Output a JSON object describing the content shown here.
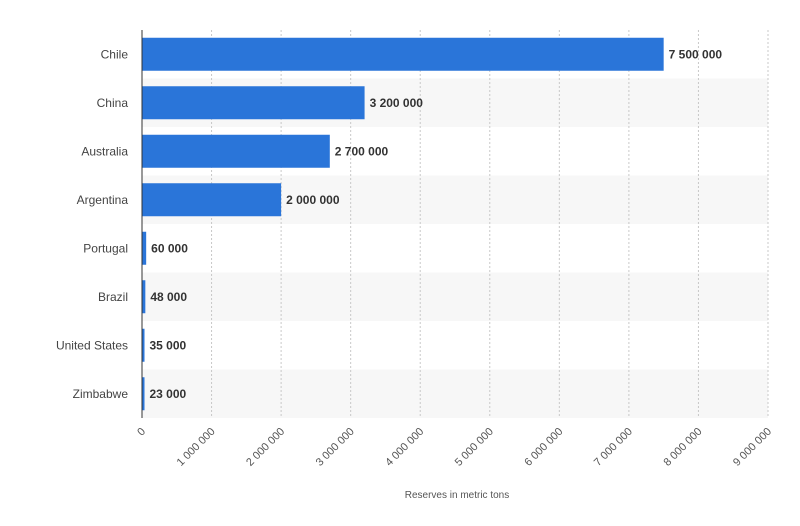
{
  "chart_data": {
    "type": "bar",
    "orientation": "horizontal",
    "categories": [
      "Chile",
      "China",
      "Australia",
      "Argentina",
      "Portugal",
      "Brazil",
      "United States",
      "Zimbabwe"
    ],
    "values": [
      7500000,
      3200000,
      2700000,
      2000000,
      60000,
      48000,
      35000,
      23000
    ],
    "value_labels": [
      "7 500 000",
      "3 200 000",
      "2 700 000",
      "2 000 000",
      "60 000",
      "48 000",
      "35 000",
      "23 000"
    ],
    "xticks": [
      0,
      1000000,
      2000000,
      3000000,
      4000000,
      5000000,
      6000000,
      7000000,
      8000000,
      9000000
    ],
    "xtick_labels": [
      "0",
      "1 000 000",
      "2 000 000",
      "3 000 000",
      "4 000 000",
      "5 000 000",
      "6 000 000",
      "7 000 000",
      "8 000 000",
      "9 000 000"
    ],
    "xlim": [
      0,
      9000000
    ],
    "xlabel": "Reserves in metric tons",
    "ylabel": "",
    "title": "",
    "grid": true,
    "colors": {
      "bar": "#2a75d9",
      "grid": "#c8c8c8",
      "stripe": "#f7f7f7",
      "axis": "#333333"
    }
  }
}
